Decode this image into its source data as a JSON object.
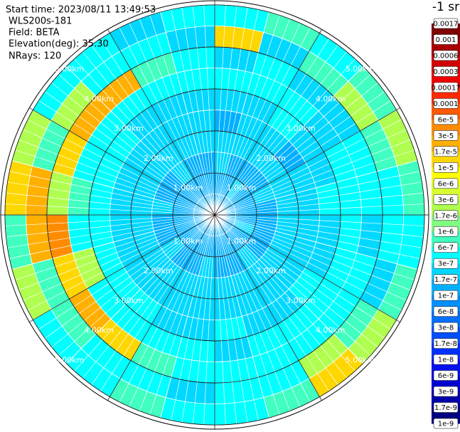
{
  "header": [
    "Start time: 2023/08/11 13:49:53",
    "WLS200s-181",
    "Field: BETA",
    "Elevation(deg): 35.30",
    "NRays: 120"
  ],
  "chart_data": {
    "type": "ppi",
    "theta_edges": [
      0,
      15,
      30,
      45,
      60,
      75,
      90,
      105,
      120,
      135,
      150,
      165,
      180,
      195,
      210,
      225,
      240,
      255,
      270,
      285,
      300,
      315,
      330,
      345,
      360
    ],
    "r_edges": [
      0,
      0.5,
      1,
      1.5,
      2,
      2.5,
      3,
      3.5,
      4,
      4.5,
      5
    ],
    "rlim": [
      0,
      5.1
    ],
    "rticks": [
      {
        "value": 1,
        "label": "1.00km"
      },
      {
        "value": 2,
        "label": "2.00km"
      },
      {
        "value": 3,
        "label": "3.00km"
      },
      {
        "value": 4,
        "label": "4.00km"
      },
      {
        "value": 5,
        "label": "5.00km"
      }
    ],
    "values": [
      [
        1.2e-07,
        1.2e-07,
        2e-07,
        2e-07,
        1.2e-07,
        2e-07,
        3.5e-07,
        2e-07,
        1.2e-05,
        3.5e-07
      ],
      [
        1.2e-07,
        1.2e-07,
        1.2e-07,
        2e-07,
        2e-07,
        2e-07,
        3.5e-07,
        3.5e-07,
        2e-07,
        8e-07
      ],
      [
        1.2e-07,
        2e-07,
        1.2e-07,
        2e-07,
        2e-07,
        3.5e-07,
        3.5e-07,
        2e-07,
        8e-07,
        3.5e-07
      ],
      [
        1.2e-07,
        1.2e-07,
        1.2e-07,
        2e-07,
        1.2e-07,
        2e-07,
        2e-07,
        2e-07,
        2e-06,
        8e-07
      ],
      [
        1.2e-07,
        1.2e-07,
        2e-07,
        2e-07,
        2e-07,
        2e-07,
        3.5e-07,
        3.5e-07,
        8e-07,
        2e-06
      ],
      [
        1.2e-07,
        1.2e-07,
        1.2e-07,
        2e-07,
        2e-07,
        3.5e-07,
        3.5e-07,
        3.5e-07,
        3.5e-07,
        8e-07
      ],
      [
        1.2e-07,
        1.2e-07,
        1.2e-07,
        2e-07,
        2e-07,
        2e-07,
        3.5e-07,
        2e-07,
        3.5e-07,
        3.5e-07
      ],
      [
        1.2e-07,
        2e-07,
        1.2e-07,
        2e-07,
        2e-07,
        2e-07,
        3.5e-07,
        3.5e-07,
        2e-07,
        8e-07
      ],
      [
        1.2e-07,
        1.2e-07,
        1.2e-07,
        2e-07,
        2e-07,
        3.5e-07,
        3.5e-07,
        3.5e-07,
        8e-07,
        2e-06
      ],
      [
        1.2e-07,
        1.2e-07,
        2e-07,
        2e-07,
        2e-07,
        2e-07,
        3.5e-07,
        3.5e-07,
        2e-06,
        1.2e-05
      ],
      [
        1.2e-07,
        1.2e-07,
        1.2e-07,
        2e-07,
        2e-07,
        2e-07,
        3.5e-07,
        3.5e-07,
        3.5e-07,
        8e-07
      ],
      [
        1.2e-07,
        1.2e-07,
        1.2e-07,
        2e-07,
        2e-07,
        3.5e-07,
        2e-07,
        3.5e-07,
        3.5e-07,
        3.5e-07
      ],
      [
        1.2e-07,
        1.2e-07,
        2e-07,
        2e-07,
        2e-07,
        2e-07,
        3.5e-07,
        3.5e-07,
        2e-07,
        3.5e-07
      ],
      [
        1.2e-07,
        1.2e-07,
        1.2e-07,
        2e-07,
        2e-07,
        2e-07,
        3.5e-07,
        8e-07,
        3.5e-07,
        8e-07
      ],
      [
        1.2e-07,
        1.2e-07,
        1.2e-07,
        2e-07,
        2e-07,
        3.5e-07,
        3.5e-07,
        1.2e-05,
        3.5e-07,
        3.5e-07
      ],
      [
        1.2e-07,
        1.2e-07,
        2e-07,
        2e-07,
        2e-07,
        3.5e-07,
        3.5e-07,
        2e-05,
        8e-07,
        3.5e-07
      ],
      [
        1.2e-07,
        1.2e-07,
        1.2e-07,
        2e-07,
        2e-07,
        3.5e-07,
        2e-06,
        1.2e-05,
        8e-07,
        2e-06
      ],
      [
        1.2e-07,
        1.2e-07,
        1.2e-07,
        2e-07,
        2e-07,
        3.5e-07,
        3.5e-07,
        4e-05,
        2e-05,
        8e-07
      ],
      [
        1.2e-07,
        1.2e-07,
        2e-07,
        2e-07,
        2e-07,
        3.5e-07,
        8e-07,
        2e-06,
        2e-05,
        1.2e-05
      ],
      [
        1.2e-07,
        1.2e-07,
        1.2e-07,
        2e-07,
        2e-07,
        3.5e-07,
        3.5e-07,
        1.2e-05,
        8e-07,
        2e-06
      ],
      [
        1.2e-07,
        1.2e-07,
        1.2e-07,
        2e-07,
        2e-07,
        3.5e-07,
        3.5e-07,
        2e-05,
        2e-06,
        3.5e-07
      ],
      [
        1.2e-07,
        1.2e-07,
        2e-07,
        2e-07,
        2e-07,
        2e-07,
        3.5e-07,
        2e-05,
        3.5e-07,
        3.5e-07
      ],
      [
        1.2e-07,
        1.2e-07,
        1.2e-07,
        2e-07,
        2e-07,
        2e-07,
        3.5e-07,
        8e-07,
        3.5e-07,
        2e-07
      ],
      [
        1.2e-07,
        1.2e-07,
        1.2e-07,
        2e-07,
        2e-07,
        2e-07,
        3.5e-07,
        3.5e-07,
        2e-07,
        3.5e-07
      ]
    ],
    "colorbar": {
      "title": "-1 sr",
      "ticks": [
        0.0017,
        0.001,
        0.0006,
        0.0003,
        0.00017,
        0.0001,
        {
          "value": 6e-05,
          "label": "6e-5"
        },
        {
          "value": 3e-05,
          "label": "3e-5"
        },
        {
          "value": 1.7e-05,
          "label": "1.7e-5"
        },
        {
          "value": 1e-05,
          "label": "1e-5"
        },
        {
          "value": 6e-06,
          "label": "6e-6"
        },
        {
          "value": 3e-06,
          "label": "3e-6"
        },
        {
          "value": 1.7e-06,
          "label": "1.7e-6"
        },
        {
          "value": 1e-06,
          "label": "1e-6"
        },
        6e-07,
        3e-07,
        1.7e-07,
        1e-07,
        6e-08,
        3e-08,
        1.7e-08,
        1e-08,
        6e-09,
        3e-09,
        1.7e-09,
        1e-09
      ],
      "colors": [
        "#7f0000",
        "#a80000",
        "#d00000",
        "#f00000",
        "#ff2a00",
        "#ff5a00",
        "#ff8c00",
        "#ffb000",
        "#ffd700",
        "#ffff00",
        "#d8ff30",
        "#b0ff50",
        "#80ff80",
        "#40ffc0",
        "#00ffff",
        "#00d8ff",
        "#00b0ff",
        "#0090ff",
        "#0070ff",
        "#0050ff",
        "#0030ff",
        "#0010f0",
        "#0000d0",
        "#0000a8",
        "#000080"
      ]
    }
  }
}
